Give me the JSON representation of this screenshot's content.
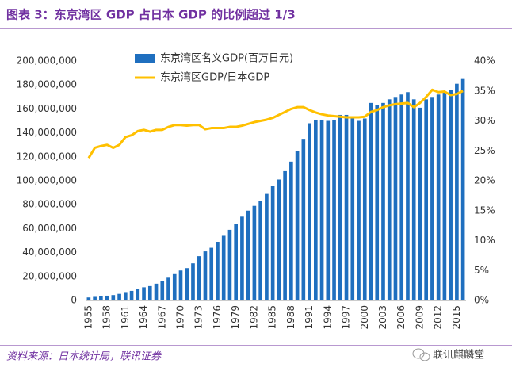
{
  "chart_data": {
    "type": "bar",
    "title": "图表 3：东京湾区 GDP 占日本 GDP 的比例超过 1/3",
    "categories": [
      "1955",
      null,
      null,
      "1958",
      null,
      null,
      "1961",
      null,
      null,
      "1964",
      null,
      null,
      "1967",
      null,
      null,
      "1970",
      null,
      null,
      "1973",
      null,
      null,
      "1976",
      null,
      null,
      "1979",
      null,
      null,
      "1982",
      null,
      null,
      "1985",
      null,
      null,
      "1988",
      null,
      null,
      "1991",
      null,
      null,
      "1994",
      null,
      null,
      "1997",
      null,
      null,
      "2000",
      null,
      null,
      "2003",
      null,
      null,
      "2006",
      null,
      null,
      "2009",
      null,
      null,
      "2012",
      null,
      null,
      "2015",
      null
    ],
    "series": [
      {
        "name": "东京湾区名义GDP(百万日元)",
        "type": "bar",
        "color": "#1f6fbf",
        "values": [
          2500000,
          3000000,
          3500000,
          4000000,
          4500000,
          5500000,
          7000000,
          8000000,
          9500000,
          11000000,
          12000000,
          14000000,
          16000000,
          19000000,
          22000000,
          25000000,
          27000000,
          31000000,
          37000000,
          41000000,
          44000000,
          49000000,
          54000000,
          59000000,
          64000000,
          70000000,
          75000000,
          79000000,
          83000000,
          89000000,
          96000000,
          101000000,
          108000000,
          116000000,
          125000000,
          135000000,
          148000000,
          151000000,
          151000000,
          150000000,
          151000000,
          155000000,
          155000000,
          152000000,
          150000000,
          152000000,
          165000000,
          163000000,
          165000000,
          168000000,
          170000000,
          172000000,
          174000000,
          168000000,
          161000000,
          168000000,
          170000000,
          172000000,
          174000000,
          176000000,
          181000000,
          185000000
        ]
      },
      {
        "name": "东京湾区GDP/日本GDP",
        "type": "line",
        "axis": "y2",
        "color": "#ffc000",
        "values": [
          23.8,
          25.5,
          25.8,
          26,
          25.5,
          26,
          27.3,
          27.6,
          28.3,
          28.5,
          28.2,
          28.5,
          28.5,
          29,
          29.3,
          29.3,
          29.2,
          29.3,
          29.3,
          28.6,
          28.8,
          28.8,
          28.8,
          29,
          29,
          29.2,
          29.5,
          29.8,
          30,
          30.2,
          30.5,
          31,
          31.5,
          32,
          32.3,
          32.3,
          31.8,
          31.4,
          31.1,
          30.9,
          30.8,
          30.7,
          30.6,
          30.6,
          30.6,
          30.7,
          31.5,
          31.8,
          32.3,
          32.6,
          32.8,
          32.9,
          33,
          32.3,
          33,
          34,
          35.2,
          34.8,
          34.9,
          34.3,
          34.5,
          35
        ]
      }
    ],
    "ylim": [
      0,
      200000000
    ],
    "yticks": [
      {
        "value": 0,
        "label": "0"
      },
      {
        "value": 20000000,
        "label": "20,000,000"
      },
      {
        "value": 40000000,
        "label": "40,000,000"
      },
      {
        "value": 60000000,
        "label": "60,000,000"
      },
      {
        "value": 80000000,
        "label": "80,000,000"
      },
      {
        "value": 100000000,
        "label": "100,000,000"
      },
      {
        "value": 120000000,
        "label": "120,000,000"
      },
      {
        "value": 140000000,
        "label": "140,000,000"
      },
      {
        "value": 160000000,
        "label": "160,000,000"
      },
      {
        "value": 180000000,
        "label": "180,000,000"
      },
      {
        "value": 200000000,
        "label": "200,000,000"
      }
    ],
    "y2lim": [
      0,
      40
    ],
    "y2ticks": [
      {
        "value": 0,
        "label": "0%"
      },
      {
        "value": 5,
        "label": "5%"
      },
      {
        "value": 10,
        "label": "10%"
      },
      {
        "value": 15,
        "label": "15%"
      },
      {
        "value": 20,
        "label": "20%"
      },
      {
        "value": 25,
        "label": "25%"
      },
      {
        "value": 30,
        "label": "30%"
      },
      {
        "value": 35,
        "label": "35%"
      },
      {
        "value": 40,
        "label": "40%"
      }
    ],
    "grid": false,
    "legend": "top-left"
  },
  "source": "资料来源：日本统计局，联讯证券",
  "watermark": "联讯麒麟堂"
}
